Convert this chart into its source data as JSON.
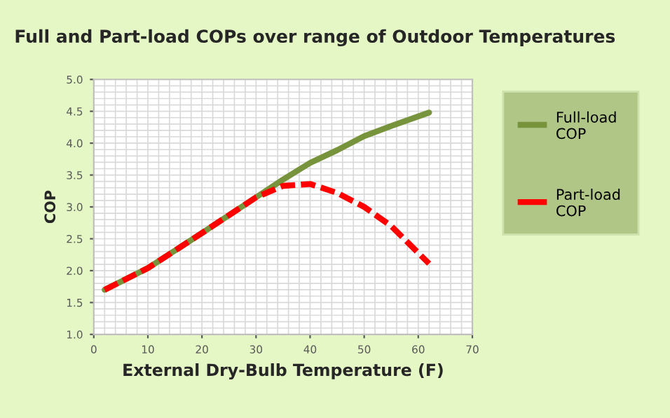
{
  "chart_data": {
    "type": "line",
    "title": "Full and Part-load COPs over range of Outdoor Temperatures",
    "xlabel": "External Dry-Bulb Temperature (F)",
    "ylabel": "COP",
    "x": [
      2,
      10,
      20,
      30,
      35,
      40,
      45,
      50,
      55,
      62
    ],
    "series": [
      {
        "name": "Full-load COP",
        "color": "#77933c",
        "line_style": "solid",
        "values": [
          1.7,
          2.04,
          2.59,
          3.15,
          3.43,
          3.69,
          3.89,
          4.11,
          4.27,
          4.48
        ]
      },
      {
        "name": "Part-load COP",
        "color": "#ff0000",
        "line_style": "dashed",
        "values": [
          1.7,
          2.04,
          2.59,
          3.15,
          3.33,
          3.36,
          3.22,
          3.0,
          2.7,
          2.11
        ]
      }
    ],
    "xlim": [
      0,
      70
    ],
    "xticks": [
      0,
      10,
      20,
      30,
      40,
      50,
      60,
      70
    ],
    "ylim": [
      1.0,
      5.0
    ],
    "yticks": [
      {
        "value": 1.0,
        "label": "1.0"
      },
      {
        "value": 1.5,
        "label": "1.5"
      },
      {
        "value": 2.0,
        "label": "2.0"
      },
      {
        "value": 2.5,
        "label": "2.5"
      },
      {
        "value": 3.0,
        "label": "3.0"
      },
      {
        "value": 3.5,
        "label": "3.5"
      },
      {
        "value": 4.0,
        "label": "4.0"
      },
      {
        "value": 4.5,
        "label": "4.5"
      },
      {
        "value": 5.0,
        "label": "5.0"
      }
    ],
    "grid": true,
    "legend": "right",
    "marker": "none"
  }
}
